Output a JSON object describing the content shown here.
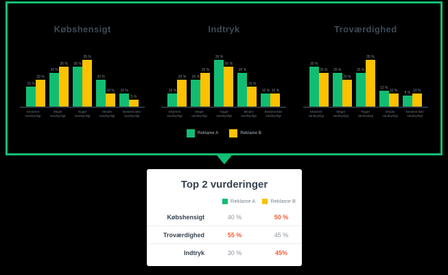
{
  "colors": {
    "background": "#000000",
    "panel_border": "#12bd73",
    "reklame_a_green": "#12bd73",
    "reklame_b_yellow": "#fcc201",
    "highlight_orange": "#f45b32",
    "title_slate": "#3d4a56",
    "muted_gray": "#828c95"
  },
  "panel": {
    "legend": [
      {
        "label": "Reklame A",
        "color": "#12bd73"
      },
      {
        "label": "Reklame B",
        "color": "#fcc201"
      }
    ]
  },
  "chart_data": [
    {
      "type": "bar",
      "title": "Købshensigt",
      "categories": [
        "Ekstremt sandsynligt",
        "Meget sandsynligt",
        "Noget sandsynligt",
        "Mindre sandsynligt",
        "Bestemt ikke sandsynligt"
      ],
      "series": [
        {
          "name": "Reklame A",
          "color": "#12bd73",
          "values": [
            15,
            25,
            30,
            20,
            10
          ]
        },
        {
          "name": "Reklame B",
          "color": "#fcc201",
          "values": [
            20,
            30,
            35,
            10,
            5
          ]
        }
      ],
      "value_suffix": " %",
      "xlabel": "",
      "ylabel": "",
      "ylim": [
        0,
        40
      ],
      "grid": false,
      "legend_position": "bottom-shared"
    },
    {
      "type": "bar",
      "title": "Indtryk",
      "categories": [
        "Ekstremt sandsynligt",
        "Meget sandsynligt",
        "Noget sandsynligt",
        "Mindre sandsynligt",
        "Bestemt ikke sandsynligt"
      ],
      "series": [
        {
          "name": "Reklame A",
          "color": "#12bd73",
          "values": [
            10,
            20,
            35,
            25,
            10
          ]
        },
        {
          "name": "Reklame B",
          "color": "#fcc201",
          "values": [
            20,
            25,
            30,
            15,
            10
          ]
        }
      ],
      "value_suffix": " %",
      "xlabel": "",
      "ylabel": "",
      "ylim": [
        0,
        40
      ],
      "grid": false,
      "legend_position": "bottom-shared"
    },
    {
      "type": "bar",
      "title": "Troværdighed",
      "categories": [
        "Ekstremt sandsynligt",
        "Meget sandsynligt",
        "Noget sandsynligt",
        "Mindre sandsynligt",
        "Bestemt ikke sandsynligt"
      ],
      "series": [
        {
          "name": "Reklame A",
          "color": "#12bd73",
          "values": [
            30,
            25,
            25,
            12,
            8
          ]
        },
        {
          "name": "Reklame B",
          "color": "#fcc201",
          "values": [
            25,
            20,
            35,
            10,
            10
          ]
        }
      ],
      "value_suffix": " %",
      "xlabel": "",
      "ylabel": "",
      "ylim": [
        0,
        40
      ],
      "grid": false,
      "legend_position": "bottom-shared"
    }
  ],
  "card": {
    "title": "Top 2 vurderinger",
    "legend": [
      {
        "label": "Reklame A",
        "color": "#12bd73"
      },
      {
        "label": "Reklame B",
        "color": "#fcc201"
      }
    ],
    "rows": [
      {
        "label": "Købshensigt",
        "a": "40 %",
        "b": "50 %",
        "highlight": "b"
      },
      {
        "label": "Troværdighed",
        "a": "55 %",
        "b": "45 %",
        "highlight": "a"
      },
      {
        "label": "Indtryk",
        "a": "30 %",
        "b": "45%",
        "highlight": "b"
      }
    ]
  }
}
